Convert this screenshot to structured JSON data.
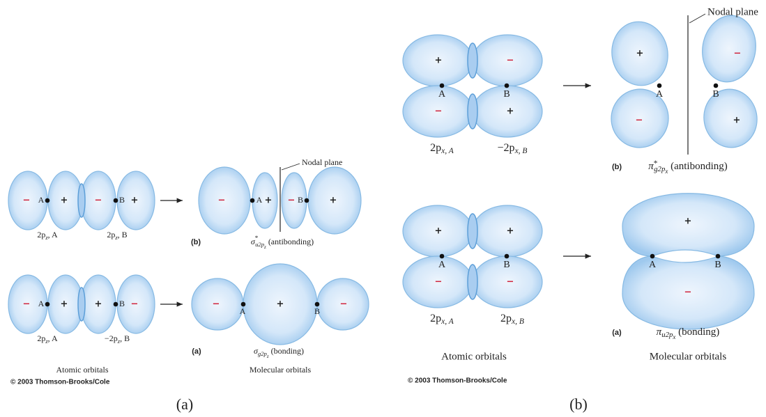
{
  "panel_a": {
    "ao_antibonding": {
      "signs": [
        "−",
        "+",
        "−",
        "+"
      ],
      "points": [
        "A",
        "B"
      ],
      "labels": [
        {
          "base": "2p",
          "sub": "z",
          "suffix": ", A"
        },
        {
          "base": "2p",
          "sub": "z",
          "suffix": ", B"
        }
      ]
    },
    "mo_antibonding": {
      "signs": [
        "−",
        "+",
        "−",
        "+"
      ],
      "points": [
        "A",
        "B"
      ],
      "nodal_plane": "Nodal plane",
      "tag": "(b)",
      "caption": {
        "sym": "σ",
        "sup": "*",
        "sub": "u2p",
        "sub2": "z",
        "suffix": " (antibonding)"
      }
    },
    "ao_bonding": {
      "signs": [
        "−",
        "+",
        "+",
        "−"
      ],
      "points": [
        "A",
        "B"
      ],
      "labels": [
        {
          "base": "2p",
          "sub": "z",
          "suffix": ", A"
        },
        {
          "base": "−2p",
          "sub": "z",
          "suffix": ", B"
        }
      ]
    },
    "mo_bonding": {
      "signs": [
        "−",
        "+",
        "−"
      ],
      "points": [
        "A",
        "B"
      ],
      "tag": "(a)",
      "caption": {
        "sym": "σ",
        "sub": "g2p",
        "sub2": "z",
        "suffix": " (bonding)"
      }
    },
    "atomic_caption": "Atomic orbitals",
    "molecular_caption": "Molecular orbitals",
    "copyright": "© 2003 Thomson-Brooks/Cole",
    "panel_label": "(a)"
  },
  "panel_b": {
    "ao_antibonding": {
      "signs": [
        "+",
        "−",
        "−",
        "+"
      ],
      "points": [
        "A",
        "B"
      ],
      "labels": [
        {
          "base": "2p",
          "sub": "x, A"
        },
        {
          "base": "−2p",
          "sub": "x, B"
        }
      ]
    },
    "mo_antibonding": {
      "signs": [
        "+",
        "−",
        "−",
        "+"
      ],
      "points": [
        "A",
        "B"
      ],
      "nodal_plane": "Nodal plane",
      "tag": "(b)",
      "caption": {
        "sym": "π",
        "sup": "*",
        "sub": "g2p",
        "sub2": "x",
        "suffix": " (antibonding)"
      }
    },
    "ao_bonding": {
      "signs": [
        "+",
        "+",
        "−",
        "−"
      ],
      "points": [
        "A",
        "B"
      ],
      "labels": [
        {
          "base": "2p",
          "sub": "x, A"
        },
        {
          "base": "2p",
          "sub": "x, B"
        }
      ]
    },
    "mo_bonding": {
      "signs": [
        "+",
        "−"
      ],
      "points": [
        "A",
        "B"
      ],
      "tag": "(a)",
      "caption": {
        "sym": "π",
        "sub": "u2p",
        "sub2": "x",
        "suffix": " (bonding)"
      }
    },
    "atomic_caption": "Atomic orbitals",
    "molecular_caption": "Molecular orbitals",
    "copyright": "© 2003 Thomson-Brooks/Cole",
    "panel_label": "(b)"
  }
}
